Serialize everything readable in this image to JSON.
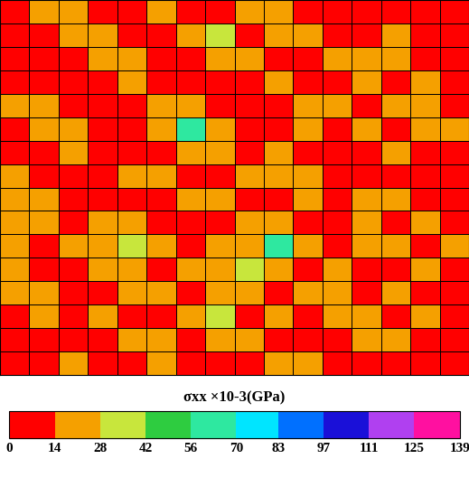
{
  "chart_data": {
    "type": "heatmap",
    "tick_labels": false,
    "cells": [
      [
        7,
        21,
        21,
        7,
        7,
        21,
        7,
        7,
        21,
        21,
        7,
        7,
        7,
        7,
        7,
        7
      ],
      [
        7,
        7,
        21,
        21,
        7,
        7,
        21,
        35,
        7,
        21,
        21,
        7,
        7,
        21,
        7,
        7
      ],
      [
        7,
        7,
        7,
        21,
        21,
        7,
        7,
        21,
        21,
        7,
        7,
        21,
        21,
        21,
        7,
        7
      ],
      [
        7,
        7,
        7,
        7,
        21,
        7,
        7,
        7,
        7,
        21,
        7,
        7,
        21,
        7,
        21,
        7
      ],
      [
        21,
        21,
        7,
        7,
        7,
        21,
        21,
        7,
        7,
        7,
        21,
        21,
        7,
        21,
        21,
        7
      ],
      [
        7,
        21,
        21,
        7,
        7,
        21,
        63,
        21,
        7,
        7,
        21,
        7,
        21,
        7,
        21,
        21
      ],
      [
        7,
        7,
        21,
        7,
        7,
        7,
        21,
        21,
        7,
        21,
        7,
        7,
        7,
        21,
        7,
        7
      ],
      [
        21,
        7,
        7,
        7,
        21,
        21,
        7,
        7,
        21,
        21,
        21,
        7,
        7,
        7,
        7,
        7
      ],
      [
        21,
        21,
        7,
        7,
        7,
        7,
        21,
        21,
        7,
        7,
        21,
        7,
        21,
        21,
        7,
        7
      ],
      [
        21,
        21,
        7,
        21,
        21,
        7,
        7,
        7,
        21,
        21,
        7,
        7,
        21,
        7,
        21,
        7
      ],
      [
        21,
        7,
        21,
        21,
        35,
        21,
        7,
        21,
        21,
        63,
        21,
        7,
        21,
        21,
        7,
        21
      ],
      [
        21,
        7,
        7,
        21,
        21,
        7,
        21,
        21,
        35,
        21,
        7,
        21,
        7,
        7,
        21,
        7
      ],
      [
        21,
        21,
        7,
        7,
        21,
        21,
        7,
        21,
        21,
        7,
        21,
        21,
        7,
        21,
        7,
        7
      ],
      [
        7,
        21,
        7,
        21,
        7,
        7,
        21,
        35,
        7,
        21,
        7,
        21,
        21,
        7,
        21,
        7
      ],
      [
        7,
        7,
        7,
        7,
        21,
        21,
        7,
        21,
        21,
        7,
        7,
        7,
        21,
        21,
        7,
        7
      ],
      [
        7,
        7,
        21,
        7,
        7,
        21,
        7,
        7,
        7,
        21,
        21,
        7,
        7,
        7,
        7,
        7
      ]
    ],
    "colorbar": {
      "title": "σxx ×10-3(GPa)",
      "range": [
        0,
        139
      ],
      "ticks": [
        0,
        14,
        28,
        42,
        56,
        70,
        83,
        97,
        111,
        125,
        139
      ],
      "colors": [
        "#ff0000",
        "#f5a000",
        "#c8e63c",
        "#2ecc40",
        "#2ee8a0",
        "#00e5ff",
        "#0070ff",
        "#1a10d8",
        "#b040f0",
        "#ff10a0"
      ]
    }
  }
}
